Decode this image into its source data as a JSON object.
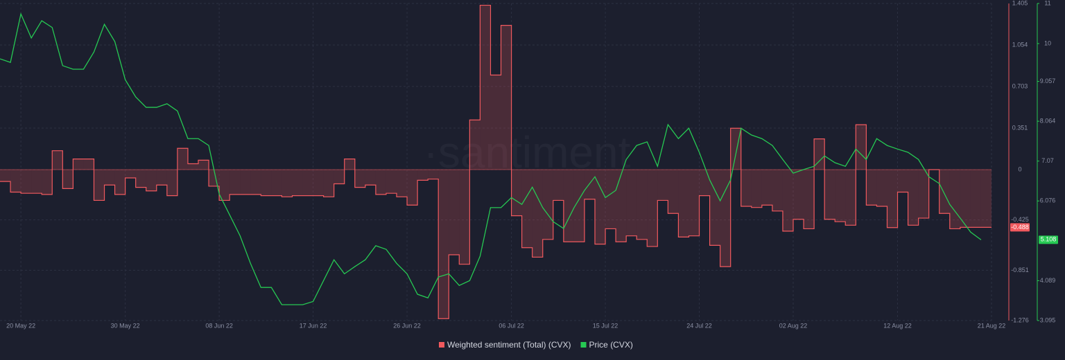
{
  "chart_data": {
    "type": "line",
    "watermark": "·santiment",
    "x": [
      "2022-05-18",
      "2022-05-19",
      "2022-05-20",
      "2022-05-21",
      "2022-05-22",
      "2022-05-23",
      "2022-05-24",
      "2022-05-25",
      "2022-05-26",
      "2022-05-27",
      "2022-05-28",
      "2022-05-29",
      "2022-05-30",
      "2022-05-31",
      "2022-06-01",
      "2022-06-02",
      "2022-06-03",
      "2022-06-04",
      "2022-06-05",
      "2022-06-06",
      "2022-06-07",
      "2022-06-08",
      "2022-06-09",
      "2022-06-10",
      "2022-06-11",
      "2022-06-12",
      "2022-06-13",
      "2022-06-14",
      "2022-06-15",
      "2022-06-16",
      "2022-06-17",
      "2022-06-18",
      "2022-06-19",
      "2022-06-20",
      "2022-06-21",
      "2022-06-22",
      "2022-06-23",
      "2022-06-24",
      "2022-06-25",
      "2022-06-26",
      "2022-06-27",
      "2022-06-28",
      "2022-06-29",
      "2022-06-30",
      "2022-07-01",
      "2022-07-02",
      "2022-07-03",
      "2022-07-04",
      "2022-07-05",
      "2022-07-06",
      "2022-07-07",
      "2022-07-08",
      "2022-07-09",
      "2022-07-10",
      "2022-07-11",
      "2022-07-12",
      "2022-07-13",
      "2022-07-14",
      "2022-07-15",
      "2022-07-16",
      "2022-07-17",
      "2022-07-18",
      "2022-07-19",
      "2022-07-20",
      "2022-07-21",
      "2022-07-22",
      "2022-07-23",
      "2022-07-24",
      "2022-07-25",
      "2022-07-26",
      "2022-07-27",
      "2022-07-28",
      "2022-07-29",
      "2022-07-30",
      "2022-07-31",
      "2022-08-01",
      "2022-08-02",
      "2022-08-03",
      "2022-08-04",
      "2022-08-05",
      "2022-08-06",
      "2022-08-07",
      "2022-08-08",
      "2022-08-09",
      "2022-08-10",
      "2022-08-11",
      "2022-08-12",
      "2022-08-13",
      "2022-08-14",
      "2022-08-15",
      "2022-08-16",
      "2022-08-17",
      "2022-08-18",
      "2022-08-19",
      "2022-08-20"
    ],
    "xlim": [
      "2022-05-18",
      "2022-08-21"
    ],
    "xticks": [
      {
        "value": "2022-05-20",
        "label": "20 May 22"
      },
      {
        "value": "2022-05-30",
        "label": "30 May 22"
      },
      {
        "value": "2022-06-08",
        "label": "08 Jun 22"
      },
      {
        "value": "2022-06-17",
        "label": "17 Jun 22"
      },
      {
        "value": "2022-06-26",
        "label": "26 Jun 22"
      },
      {
        "value": "2022-07-06",
        "label": "06 Jul 22"
      },
      {
        "value": "2022-07-15",
        "label": "15 Jul 22"
      },
      {
        "value": "2022-07-24",
        "label": "24 Jul 22"
      },
      {
        "value": "2022-08-02",
        "label": "02 Aug 22"
      },
      {
        "value": "2022-08-12",
        "label": "12 Aug 22"
      },
      {
        "value": "2022-08-21",
        "label": "21 Aug 22"
      }
    ],
    "ylim": [
      -1.276,
      1.405
    ],
    "yticks": [
      -1.276,
      -0.851,
      -0.425,
      0,
      0.351,
      0.703,
      1.054,
      1.405
    ],
    "y2lim": [
      3.095,
      11
    ],
    "y2ticks": [
      3.095,
      4.089,
      6.076,
      7.07,
      8.064,
      9.057,
      10,
      11
    ],
    "grid": true,
    "legend": "bottom",
    "series": [
      {
        "name": "Weighted sentiment (Total) (CVX)",
        "color": "#f0595e",
        "style": "step-area",
        "values": [
          -0.1,
          -0.19,
          -0.2,
          -0.2,
          -0.21,
          0.16,
          -0.16,
          0.09,
          0.09,
          -0.26,
          -0.13,
          -0.21,
          -0.07,
          -0.15,
          -0.18,
          -0.13,
          -0.22,
          0.18,
          0.05,
          0.08,
          -0.14,
          -0.26,
          -0.21,
          -0.21,
          -0.21,
          -0.22,
          -0.22,
          -0.23,
          -0.22,
          -0.22,
          -0.22,
          -0.23,
          -0.12,
          0.09,
          -0.15,
          -0.13,
          -0.21,
          -0.2,
          -0.23,
          -0.3,
          -0.09,
          -0.08,
          -1.26,
          -0.72,
          -0.8,
          0.42,
          1.39,
          0.8,
          1.22,
          -0.39,
          -0.66,
          -0.74,
          -0.59,
          -0.26,
          -0.61,
          -0.61,
          -0.25,
          -0.63,
          -0.5,
          -0.61,
          -0.56,
          -0.59,
          -0.65,
          -0.26,
          -0.37,
          -0.57,
          -0.56,
          -0.22,
          -0.64,
          -0.82,
          0.35,
          -0.31,
          -0.32,
          -0.3,
          -0.35,
          -0.52,
          -0.42,
          -0.5,
          0.26,
          -0.42,
          -0.44,
          -0.47,
          0.38,
          -0.3,
          -0.31,
          -0.49,
          -0.19,
          -0.47,
          -0.41,
          0.0,
          -0.37,
          -0.5,
          -0.488,
          -0.488,
          -0.488
        ]
      },
      {
        "name": "Price (CVX)",
        "color": "#26c953",
        "axis": "y2",
        "values": [
          9.62,
          9.53,
          10.74,
          10.14,
          10.57,
          10.4,
          9.45,
          9.36,
          9.36,
          9.79,
          10.48,
          10.05,
          9.1,
          8.67,
          8.41,
          8.41,
          8.5,
          8.32,
          7.63,
          7.63,
          7.46,
          6.25,
          5.73,
          5.21,
          4.52,
          3.92,
          3.92,
          3.49,
          3.49,
          3.49,
          3.57,
          4.09,
          4.61,
          4.26,
          4.44,
          4.61,
          4.96,
          4.87,
          4.52,
          4.26,
          3.75,
          3.66,
          4.18,
          4.26,
          3.97,
          4.09,
          4.7,
          5.91,
          5.91,
          6.16,
          5.99,
          6.42,
          5.91,
          5.56,
          5.39,
          5.91,
          6.34,
          6.68,
          6.16,
          6.34,
          7.11,
          7.46,
          7.55,
          6.94,
          7.98,
          7.63,
          7.89,
          7.29,
          6.6,
          6.08,
          6.6,
          7.89,
          7.72,
          7.63,
          7.46,
          7.11,
          6.77,
          6.86,
          6.94,
          7.2,
          7.03,
          6.94,
          7.37,
          7.11,
          7.63,
          7.46,
          7.37,
          7.29,
          7.11,
          6.68,
          6.51,
          5.99,
          5.65,
          5.3,
          5.108
        ]
      }
    ]
  }
}
